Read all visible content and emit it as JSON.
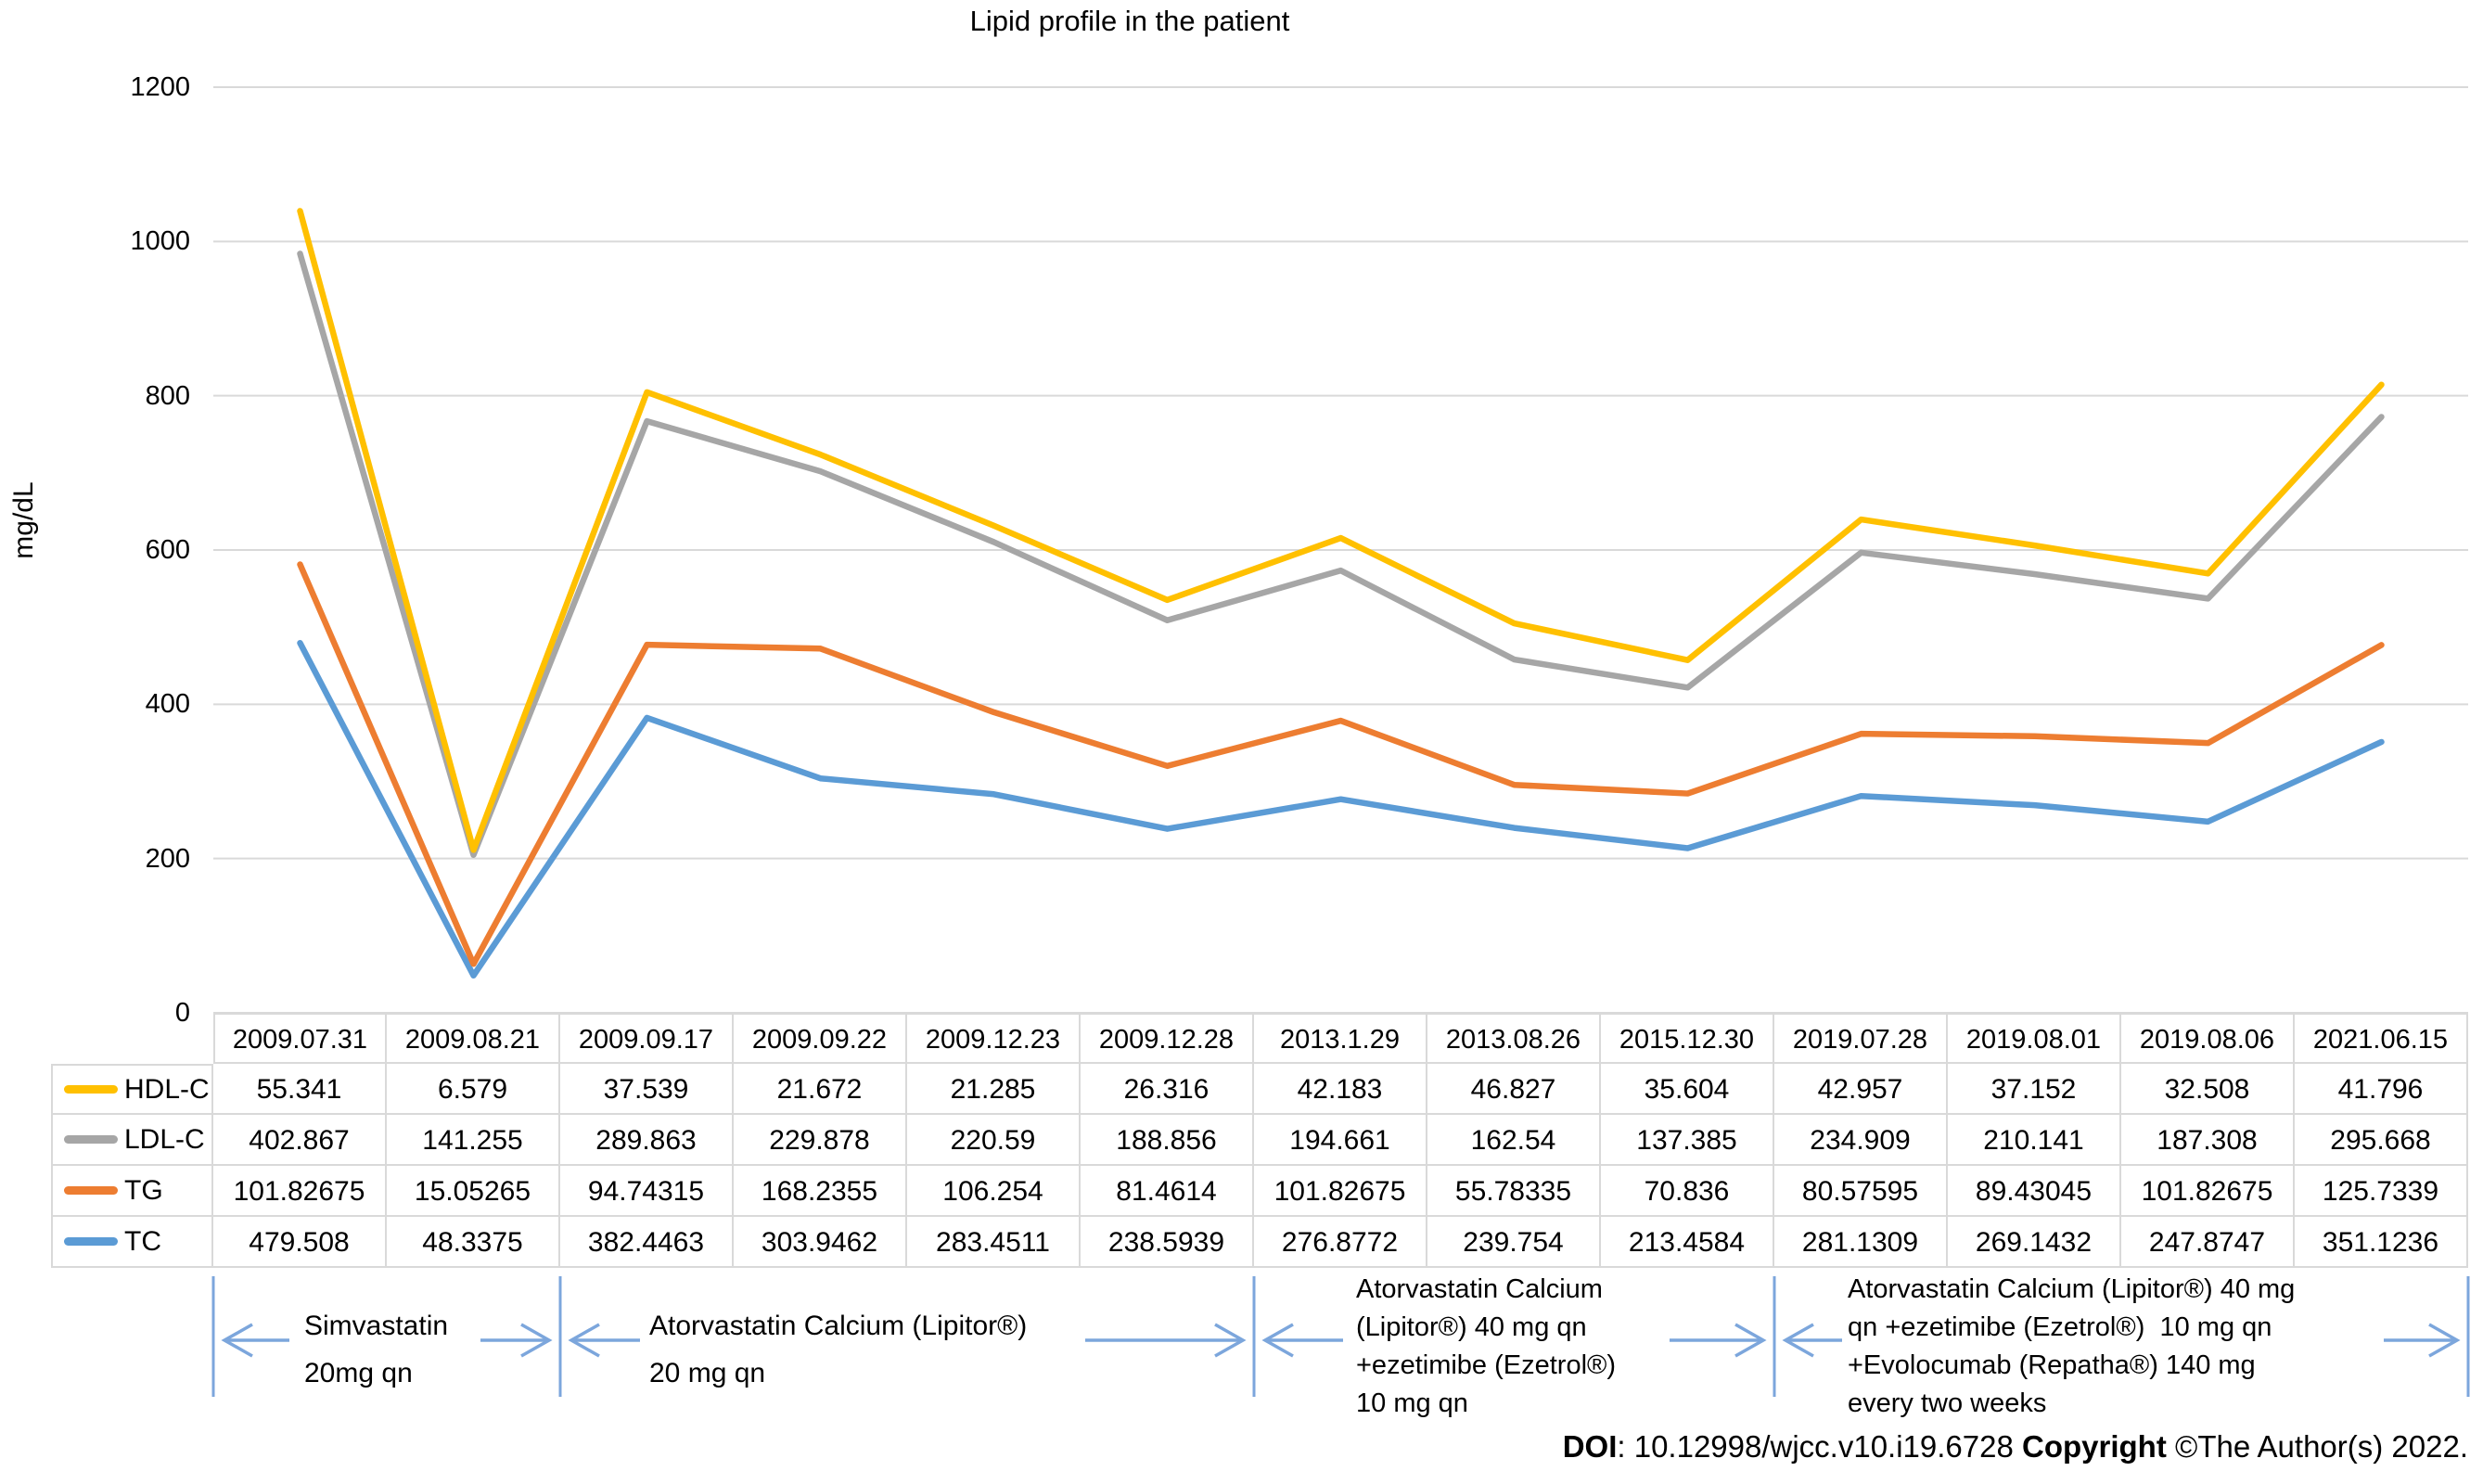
{
  "chart": {
    "title": "Lipid profile in the patient",
    "y_axis_label": "mg/dL"
  },
  "chart_data": {
    "type": "line",
    "stacked": true,
    "title": "Lipid profile in the patient",
    "xlabel": "",
    "ylabel": "mg/dL",
    "ylim": [
      0,
      1200
    ],
    "y_ticks": [
      0,
      200,
      400,
      600,
      800,
      1000,
      1200
    ],
    "grid": true,
    "legend_position": "table-left",
    "categories": [
      "2009.07.31",
      "2009.08.21",
      "2009.09.17",
      "2009.09.22",
      "2009.12.23",
      "2009.12.28",
      "2013.1.29",
      "2013.08.26",
      "2015.12.30",
      "2019.07.28",
      "2019.08.01",
      "2019.08.06",
      "2021.06.15"
    ],
    "series": [
      {
        "name": "HDL-C",
        "color": "#FFC000",
        "values": [
          55.341,
          6.579,
          37.539,
          21.672,
          21.285,
          26.316,
          42.183,
          46.827,
          35.604,
          42.957,
          37.152,
          32.508,
          41.796
        ]
      },
      {
        "name": "LDL-C",
        "color": "#A6A6A6",
        "values": [
          402.867,
          141.255,
          289.863,
          229.878,
          220.59,
          188.856,
          194.661,
          162.54,
          137.385,
          234.909,
          210.141,
          187.308,
          295.668
        ]
      },
      {
        "name": "TG",
        "color": "#ED7D31",
        "values": [
          101.82675,
          15.05265,
          94.74315,
          168.2355,
          106.254,
          81.4614,
          101.82675,
          55.78335,
          70.836,
          80.57595,
          89.43045,
          101.82675,
          125.7339
        ]
      },
      {
        "name": "TC",
        "color": "#5B9BD5",
        "values": [
          479.508,
          48.3375,
          382.4463,
          303.9462,
          283.4511,
          238.5939,
          276.8772,
          239.754,
          213.4584,
          281.1309,
          269.1432,
          247.8747,
          351.1236
        ]
      }
    ],
    "stack_order_bottom_to_top": [
      "TC",
      "TG",
      "LDL-C",
      "HDL-C"
    ]
  },
  "treatments": [
    {
      "lines": [
        "Simvastatin",
        "20mg qn"
      ],
      "start_col": 0,
      "end_col": 2
    },
    {
      "lines": [
        "Atorvastatin Calcium (Lipitor®)",
        "20 mg qn"
      ],
      "start_col": 2,
      "end_col": 6
    },
    {
      "lines": [
        "Atorvastatin Calcium",
        "(Lipitor®) 40 mg qn",
        "+ezetimibe (Ezetrol®)",
        "10 mg qn"
      ],
      "start_col": 6,
      "end_col": 9
    },
    {
      "lines": [
        "Atorvastatin Calcium (Lipitor®) 40 mg",
        "qn +ezetimibe (Ezetrol®)  10 mg qn",
        "+Evolocumab (Repatha®) 140 mg",
        "every two weeks"
      ],
      "start_col": 9,
      "end_col": 13
    }
  ],
  "footer": {
    "doi_label": "DOI",
    "doi_value": ": 10.12998/wjcc.v10.i19.6728 ",
    "copyright_label": "Copyright",
    "copyright_value": " ©The Author(s) 2022."
  },
  "colors": {
    "grid": "#D9D9D9",
    "table_border": "#D9D9D9",
    "arrow": "#7CA6DC",
    "text": "#000000"
  }
}
